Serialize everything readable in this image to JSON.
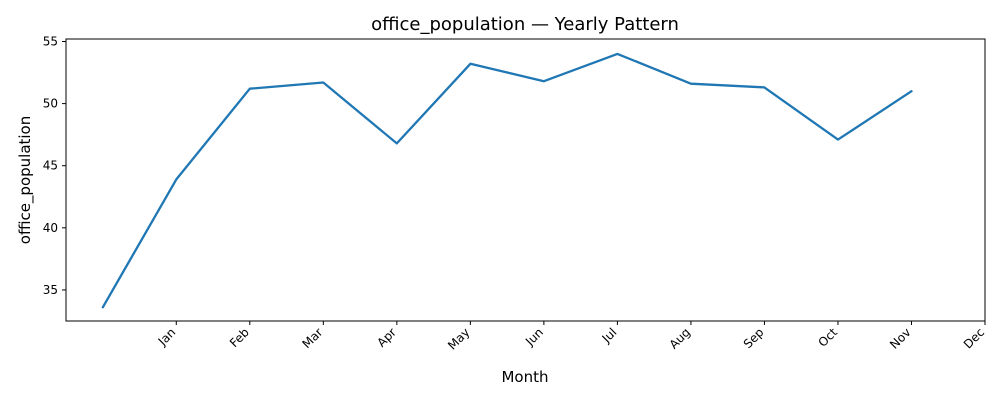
{
  "chart_data": {
    "type": "line",
    "title": "office_population — Yearly Pattern",
    "xlabel": "Month",
    "ylabel": "office_population",
    "x_tick_labels": [
      "Jan",
      "Feb",
      "Mar",
      "Apr",
      "May",
      "Jun",
      "Jul",
      "Aug",
      "Sep",
      "Oct",
      "Nov",
      "Dec"
    ],
    "y_ticks": [
      35,
      40,
      45,
      50,
      55
    ],
    "ylim": [
      32.5,
      55.2
    ],
    "grid": false,
    "colors": {
      "series": "#1f77b4"
    },
    "series": [
      {
        "values": [
          33.6,
          43.9,
          51.2,
          51.7,
          46.8,
          53.2,
          51.8,
          54.0,
          51.6,
          51.3,
          47.1,
          51.0
        ]
      }
    ]
  }
}
